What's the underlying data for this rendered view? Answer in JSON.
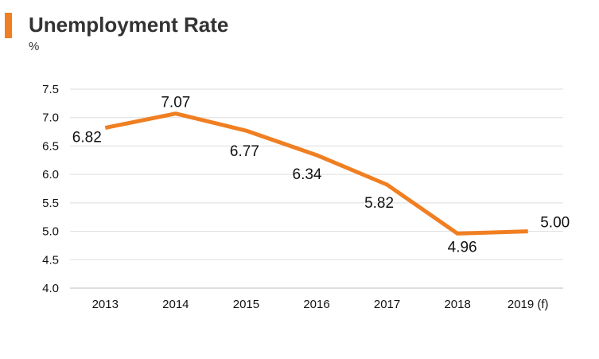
{
  "header": {
    "title": "Unemployment Rate",
    "unit": "%",
    "accent_color": "#F07F22"
  },
  "chart_data": {
    "type": "line",
    "title": "Unemployment Rate",
    "ylabel": "%",
    "xlabel": "",
    "categories": [
      "2013",
      "2014",
      "2015",
      "2016",
      "2017",
      "2018",
      "2019 (f)"
    ],
    "series": [
      {
        "values": [
          6.82,
          7.07,
          6.77,
          6.34,
          5.82,
          4.96,
          5.0
        ],
        "labels": [
          "6.82",
          "7.07",
          "6.77",
          "6.34",
          "5.82",
          "4.96",
          "5.00"
        ],
        "color": "#F07F22"
      }
    ],
    "ylim": [
      4.0,
      7.5
    ],
    "yticks": [
      "4.0",
      "4.5",
      "5.0",
      "5.5",
      "6.0",
      "6.5",
      "7.0",
      "7.5"
    ],
    "grid": true,
    "legend": "none"
  }
}
